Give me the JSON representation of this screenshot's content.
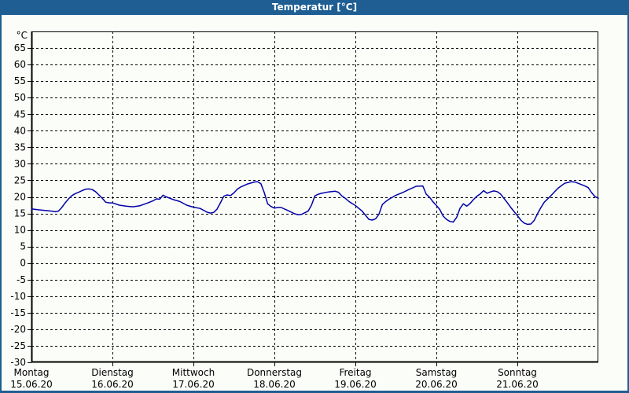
{
  "window": {
    "title": "Temperatur [°C]"
  },
  "colors": {
    "titlebar": "#1e5e93",
    "frame": "#1e5e93",
    "background": "#fbfdf9",
    "axis": "#000000",
    "line": "#0000a8"
  },
  "chart_data": {
    "type": "line",
    "title": "Temperatur [°C]",
    "legend": "none",
    "grid": {
      "style": "dashed",
      "color": "#000000",
      "horizontal": true,
      "vertical": true
    },
    "y_axis": {
      "unit_label": "°C",
      "min": -30,
      "max": 70,
      "tick_step": 5,
      "ticks": [
        65,
        60,
        55,
        50,
        45,
        40,
        35,
        30,
        25,
        20,
        15,
        10,
        5,
        0,
        -5,
        -10,
        -15,
        -20,
        -25,
        -30
      ]
    },
    "x_axis": {
      "hours_total": 168,
      "days": [
        {
          "weekday": "Montag",
          "date": "15.06.20"
        },
        {
          "weekday": "Dienstag",
          "date": "16.06.20"
        },
        {
          "weekday": "Mittwoch",
          "date": "17.06.20"
        },
        {
          "weekday": "Donnerstag",
          "date": "18.06.20"
        },
        {
          "weekday": "Freitag",
          "date": "19.06.20"
        },
        {
          "weekday": "Samstag",
          "date": "20.06.20"
        },
        {
          "weekday": "Sonntag",
          "date": "21.06.20"
        }
      ]
    },
    "series": [
      {
        "name": "Temperatur",
        "color": "#0000a8",
        "points": [
          [
            0,
            16.4
          ],
          [
            2,
            16.1
          ],
          [
            4,
            15.9
          ],
          [
            6,
            15.7
          ],
          [
            7,
            15.5
          ],
          [
            8,
            15.7
          ],
          [
            9,
            16.8
          ],
          [
            10,
            18.2
          ],
          [
            11,
            19.4
          ],
          [
            12,
            20.4
          ],
          [
            13,
            21.0
          ],
          [
            14,
            21.4
          ],
          [
            15,
            21.9
          ],
          [
            16,
            22.3
          ],
          [
            17,
            22.4
          ],
          [
            18,
            22.2
          ],
          [
            19,
            21.6
          ],
          [
            20,
            20.6
          ],
          [
            21,
            19.6
          ],
          [
            22,
            18.4
          ],
          [
            23,
            18.2
          ],
          [
            24,
            18.2
          ],
          [
            26,
            17.5
          ],
          [
            28,
            17.2
          ],
          [
            30,
            17.0
          ],
          [
            32,
            17.3
          ],
          [
            34,
            18.0
          ],
          [
            36,
            18.8
          ],
          [
            37,
            19.4
          ],
          [
            38,
            19.3
          ],
          [
            39,
            20.5
          ],
          [
            40,
            20.0
          ],
          [
            42,
            19.2
          ],
          [
            44,
            18.6
          ],
          [
            46,
            17.5
          ],
          [
            48,
            16.9
          ],
          [
            50,
            16.5
          ],
          [
            52,
            15.4
          ],
          [
            53,
            15.1
          ],
          [
            54,
            15.3
          ],
          [
            55,
            16.3
          ],
          [
            56,
            18.2
          ],
          [
            57,
            20.2
          ],
          [
            58,
            20.6
          ],
          [
            59,
            20.4
          ],
          [
            60,
            21.2
          ],
          [
            61,
            22.3
          ],
          [
            62,
            23.0
          ],
          [
            64,
            23.9
          ],
          [
            66,
            24.5
          ],
          [
            67,
            24.6
          ],
          [
            68,
            24.0
          ],
          [
            69,
            21.3
          ],
          [
            70,
            17.9
          ],
          [
            71,
            17.1
          ],
          [
            72,
            16.6
          ],
          [
            73,
            16.8
          ],
          [
            74,
            16.8
          ],
          [
            76,
            15.9
          ],
          [
            78,
            14.9
          ],
          [
            79,
            14.6
          ],
          [
            80,
            14.7
          ],
          [
            82,
            15.7
          ],
          [
            83,
            17.5
          ],
          [
            84,
            20.3
          ],
          [
            85,
            20.8
          ],
          [
            86,
            21.1
          ],
          [
            88,
            21.5
          ],
          [
            90,
            21.7
          ],
          [
            91,
            21.4
          ],
          [
            92,
            20.3
          ],
          [
            93,
            19.6
          ],
          [
            94,
            18.7
          ],
          [
            95,
            18.0
          ],
          [
            96,
            17.4
          ],
          [
            98,
            15.7
          ],
          [
            100,
            13.2
          ],
          [
            101,
            13.0
          ],
          [
            102,
            13.4
          ],
          [
            103,
            14.8
          ],
          [
            104,
            17.7
          ],
          [
            105,
            18.6
          ],
          [
            106,
            19.3
          ],
          [
            108,
            20.5
          ],
          [
            110,
            21.3
          ],
          [
            112,
            22.3
          ],
          [
            114,
            23.2
          ],
          [
            116,
            23.3
          ],
          [
            117,
            20.8
          ],
          [
            118,
            19.9
          ],
          [
            119,
            18.5
          ],
          [
            120,
            17.4
          ],
          [
            121,
            16.2
          ],
          [
            122,
            14.2
          ],
          [
            123,
            13.2
          ],
          [
            124,
            12.6
          ],
          [
            125,
            12.4
          ],
          [
            126,
            13.8
          ],
          [
            127,
            16.5
          ],
          [
            128,
            17.9
          ],
          [
            129,
            17.2
          ],
          [
            130,
            18.0
          ],
          [
            131,
            19.2
          ],
          [
            132,
            20.2
          ],
          [
            133,
            20.9
          ],
          [
            134,
            21.9
          ],
          [
            135,
            21.1
          ],
          [
            136,
            21.5
          ],
          [
            137,
            21.8
          ],
          [
            138,
            21.6
          ],
          [
            139,
            20.9
          ],
          [
            140,
            19.6
          ],
          [
            141,
            18.3
          ],
          [
            142,
            16.9
          ],
          [
            143,
            15.6
          ],
          [
            144,
            14.4
          ],
          [
            145,
            13.0
          ],
          [
            146,
            12.1
          ],
          [
            147,
            11.7
          ],
          [
            148,
            11.8
          ],
          [
            149,
            12.9
          ],
          [
            150,
            15.0
          ],
          [
            151,
            16.8
          ],
          [
            152,
            18.4
          ],
          [
            154,
            20.4
          ],
          [
            156,
            22.6
          ],
          [
            158,
            24.1
          ],
          [
            160,
            24.6
          ],
          [
            161,
            24.5
          ],
          [
            162,
            24.1
          ],
          [
            164,
            23.3
          ],
          [
            165,
            22.8
          ],
          [
            166,
            21.3
          ],
          [
            167,
            20.1
          ],
          [
            168,
            19.6
          ]
        ]
      }
    ]
  }
}
